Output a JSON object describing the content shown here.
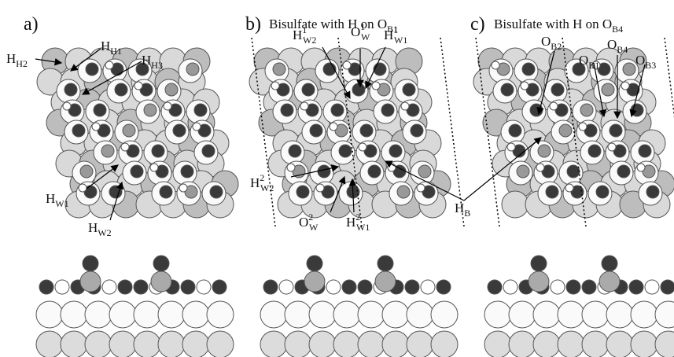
{
  "panels": [
    {
      "letter": "a)",
      "labels": [
        {
          "main": "H",
          "sub": "H2"
        },
        {
          "main": "H",
          "sub": "H1"
        },
        {
          "main": "H",
          "sub": "H3"
        },
        {
          "main": "H",
          "sub": "W1"
        },
        {
          "main": "H",
          "sub": "W2"
        }
      ]
    },
    {
      "letter": "b)",
      "title": {
        "text": "Bisulfate with H on O",
        "sub": "B1"
      },
      "labels": [
        {
          "main": "H",
          "sup": "1",
          "sub": "W2"
        },
        {
          "main": "O",
          "sup": "1",
          "sub": "W"
        },
        {
          "main": "H",
          "sup": "1",
          "sub": "W1"
        },
        {
          "main": "H",
          "sup": "2",
          "sub": "W2"
        },
        {
          "main": "O",
          "sup": "2",
          "sub": "W"
        },
        {
          "main": "H",
          "sup": "2",
          "sub": "W1"
        },
        {
          "main": "H",
          "sub": "B"
        }
      ]
    },
    {
      "letter": "c)",
      "title": {
        "text": "Bisulfate with H on O",
        "sub": "B4"
      },
      "labels": [
        {
          "main": "O",
          "sub": "B2"
        },
        {
          "main": "O",
          "sub": "B1"
        },
        {
          "main": "O",
          "sub": "B4"
        },
        {
          "main": "O",
          "sub": "B3"
        }
      ]
    }
  ]
}
